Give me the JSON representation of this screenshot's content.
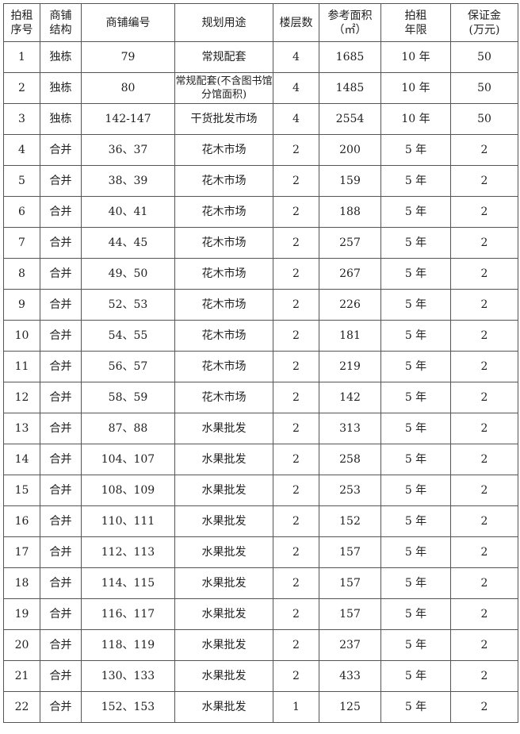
{
  "headers": [
    "拍租\n序号",
    "商铺\n结构",
    "商铺编号",
    "规划用途",
    "楼层数",
    "参考面积\n（㎡）",
    "拍租\n年限",
    "保证金\n(万元)"
  ],
  "rows": [
    [
      "1",
      "独栋",
      "79",
      "常规配套",
      "4",
      "1685",
      "10 年",
      "50"
    ],
    [
      "2",
      "独栋",
      "80",
      "常规配套(不含图书馆分馆面积)",
      "4",
      "1485",
      "10 年",
      "50"
    ],
    [
      "3",
      "独栋",
      "142-147",
      "干货批发市场",
      "4",
      "2554",
      "10 年",
      "50"
    ],
    [
      "4",
      "合并",
      "36、37",
      "花木市场",
      "2",
      "200",
      "5 年",
      "2"
    ],
    [
      "5",
      "合并",
      "38、39",
      "花木市场",
      "2",
      "159",
      "5 年",
      "2"
    ],
    [
      "6",
      "合并",
      "40、41",
      "花木市场",
      "2",
      "188",
      "5 年",
      "2"
    ],
    [
      "7",
      "合并",
      "44、45",
      "花木市场",
      "2",
      "257",
      "5 年",
      "2"
    ],
    [
      "8",
      "合并",
      "49、50",
      "花木市场",
      "2",
      "267",
      "5 年",
      "2"
    ],
    [
      "9",
      "合并",
      "52、53",
      "花木市场",
      "2",
      "226",
      "5 年",
      "2"
    ],
    [
      "10",
      "合并",
      "54、55",
      "花木市场",
      "2",
      "181",
      "5 年",
      "2"
    ],
    [
      "11",
      "合并",
      "56、57",
      "花木市场",
      "2",
      "219",
      "5 年",
      "2"
    ],
    [
      "12",
      "合并",
      "58、59",
      "花木市场",
      "2",
      "142",
      "5 年",
      "2"
    ],
    [
      "13",
      "合并",
      "87、88",
      "水果批发",
      "2",
      "313",
      "5 年",
      "2"
    ],
    [
      "14",
      "合并",
      "104、107",
      "水果批发",
      "2",
      "258",
      "5 年",
      "2"
    ],
    [
      "15",
      "合并",
      "108、109",
      "水果批发",
      "2",
      "253",
      "5 年",
      "2"
    ],
    [
      "16",
      "合并",
      "110、111",
      "水果批发",
      "2",
      "152",
      "5 年",
      "2"
    ],
    [
      "17",
      "合并",
      "112、113",
      "水果批发",
      "2",
      "157",
      "5 年",
      "2"
    ],
    [
      "18",
      "合并",
      "114、115",
      "水果批发",
      "2",
      "157",
      "5 年",
      "2"
    ],
    [
      "19",
      "合并",
      "116、117",
      "水果批发",
      "2",
      "157",
      "5 年",
      "2"
    ],
    [
      "20",
      "合并",
      "118、119",
      "水果批发",
      "2",
      "237",
      "5 年",
      "2"
    ],
    [
      "21",
      "合并",
      "130、133",
      "水果批发",
      "2",
      "433",
      "5 年",
      "2"
    ],
    [
      "22",
      "合并",
      "152、153",
      "水果批发",
      "1",
      "125",
      "5 年",
      "2"
    ]
  ]
}
